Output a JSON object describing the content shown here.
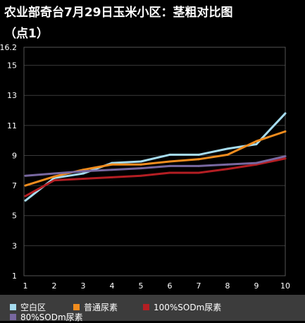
{
  "chart_data": {
    "type": "line",
    "title_line1": "农业部奇台7月29日玉米小区：茎粗对比图",
    "title_line2": "（点1）",
    "x": [
      1,
      2,
      3,
      4,
      5,
      6,
      7,
      8,
      9,
      10
    ],
    "ylim": [
      1,
      16.2
    ],
    "y_ticks": [
      "1",
      "3",
      "5",
      "7",
      "9",
      "11",
      "13",
      "15",
      "16.2"
    ],
    "x_ticks": [
      "1",
      "2",
      "3",
      "4",
      "5",
      "6",
      "7",
      "8",
      "9",
      "10"
    ],
    "grid": "horizontal",
    "legend_position": "bottom",
    "series": [
      {
        "name": "空白区",
        "color": "#a6dcef",
        "values": [
          6.0,
          7.5,
          7.8,
          8.5,
          8.6,
          9.05,
          9.05,
          9.45,
          9.75,
          11.8
        ]
      },
      {
        "name": "普通尿素",
        "color": "#f08c1e",
        "values": [
          7.0,
          7.6,
          8.05,
          8.4,
          8.4,
          8.6,
          8.75,
          9.05,
          9.95,
          10.6
        ]
      },
      {
        "name": "100%SODm尿素",
        "color": "#b41e23",
        "values": [
          6.3,
          7.35,
          7.45,
          7.55,
          7.65,
          7.85,
          7.85,
          8.1,
          8.4,
          8.8
        ]
      },
      {
        "name": "80%SODm尿素",
        "color": "#7868a0",
        "values": [
          7.65,
          7.8,
          7.95,
          8.05,
          8.15,
          8.3,
          8.3,
          8.4,
          8.5,
          8.95
        ]
      }
    ]
  }
}
